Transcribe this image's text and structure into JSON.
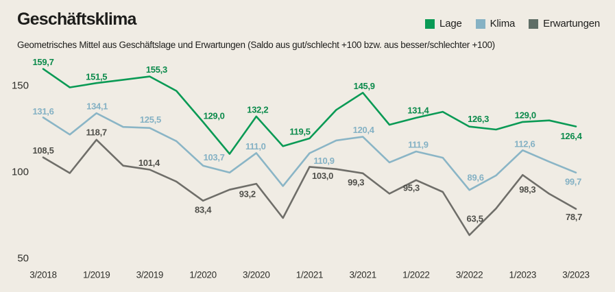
{
  "header": {
    "title": "Geschäftsklima",
    "subtitle": "Geometrisches Mittel aus Geschäftslage und Erwartungen (Saldo aus gut/schlecht +100 bzw. aus besser/schlechter +100)"
  },
  "legend": {
    "items": [
      {
        "label": "Lage",
        "color": "#0a9a55"
      },
      {
        "label": "Klima",
        "color": "#86b2c4"
      },
      {
        "label": "Erwartungen",
        "color": "#5f6e66"
      }
    ]
  },
  "colors": {
    "background": "#f0ece4",
    "text": "#1d1d1b",
    "axis_text": "#2e2e2a"
  },
  "chart_data": {
    "type": "line",
    "title": "Geschäftsklima",
    "grid": false,
    "legend_position": "top-right",
    "y_ticks": [
      150,
      100,
      50
    ],
    "ylim": [
      45,
      166
    ],
    "n_points": 21,
    "x_tick_labels": [
      "3/2018",
      "1/2019",
      "3/2019",
      "1/2020",
      "3/2020",
      "1/2021",
      "3/2021",
      "1/2022",
      "3/2022",
      "1/2023",
      "3/2023"
    ],
    "x_tick_indices": [
      0,
      2,
      4,
      6,
      8,
      10,
      12,
      14,
      16,
      18,
      20
    ],
    "labeled_indices": [
      0,
      2,
      4,
      6,
      8,
      10,
      12,
      14,
      16,
      18,
      20
    ],
    "decimal_separator": ",",
    "series": [
      {
        "name": "Lage",
        "color": "#0a9a55",
        "label_color": "#0b8a4b",
        "values": [
          159.7,
          149.0,
          151.5,
          153.4,
          155.3,
          147.0,
          129.0,
          110.5,
          132.2,
          115.0,
          119.5,
          136.0,
          145.9,
          127.4,
          131.4,
          134.9,
          126.3,
          124.6,
          129.0,
          129.9,
          126.4
        ],
        "labeled_values": [
          159.7,
          151.5,
          155.3,
          129.0,
          132.2,
          119.5,
          145.9,
          131.4,
          126.3,
          129.0,
          126.4
        ]
      },
      {
        "name": "Klima",
        "color": "#8ab5c6",
        "label_color": "#84b1c4",
        "values": [
          131.6,
          121.7,
          134.1,
          126.1,
          125.5,
          117.9,
          103.7,
          99.7,
          111.0,
          91.9,
          110.9,
          118.3,
          120.4,
          105.6,
          111.9,
          108.3,
          89.6,
          98.0,
          112.6,
          106.0,
          99.7
        ],
        "labeled_values": [
          131.6,
          134.1,
          125.5,
          103.7,
          111.0,
          110.9,
          120.4,
          111.9,
          89.6,
          112.6,
          99.7
        ]
      },
      {
        "name": "Erwartungen",
        "color": "#6f6e69",
        "label_color": "#4f4f4a",
        "values": [
          108.5,
          99.4,
          118.7,
          103.7,
          101.4,
          94.5,
          83.4,
          89.8,
          93.2,
          73.4,
          103.0,
          101.7,
          99.3,
          87.5,
          95.3,
          88.5,
          63.5,
          78.9,
          98.3,
          87.4,
          78.7
        ],
        "labeled_values": [
          108.5,
          118.7,
          101.4,
          83.4,
          93.2,
          103.0,
          99.3,
          95.3,
          63.5,
          98.3,
          78.7
        ]
      }
    ]
  }
}
